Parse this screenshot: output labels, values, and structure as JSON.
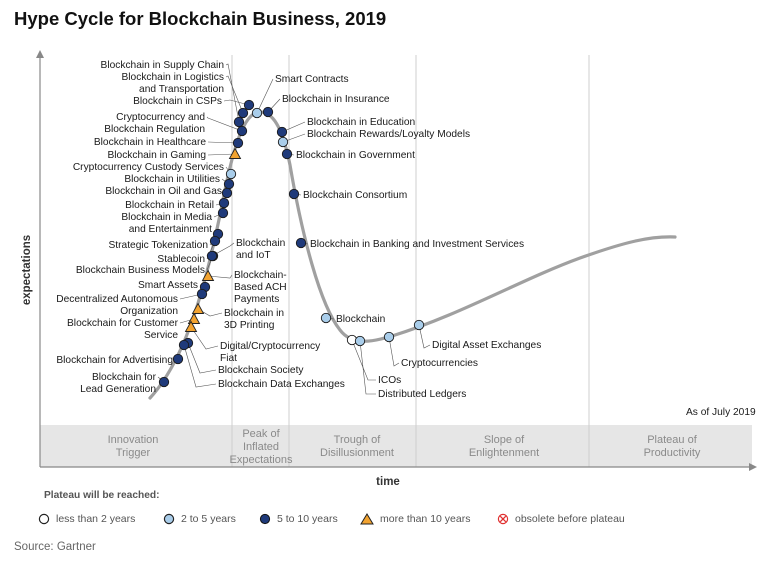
{
  "title": "Hype Cycle for Blockchain Business, 2019",
  "as_of": "As of July 2019",
  "source": "Source: Gartner",
  "legend": {
    "title": "Plateau will be reached:",
    "items": [
      {
        "key": "lt2",
        "label": "less than 2 years",
        "color": "#ffffff"
      },
      {
        "key": "2to5",
        "label": "2 to 5 years",
        "color": "#9ec5e8"
      },
      {
        "key": "5to10",
        "label": "5 to 10 years",
        "color": "#1f3a7a"
      },
      {
        "key": "gt10",
        "label": "more than 10 years",
        "color": "#f0a030"
      },
      {
        "key": "obsolete",
        "label": "obsolete before plateau",
        "color": "#e03030"
      }
    ]
  },
  "colors": {
    "lt2": "#ffffff",
    "2to5": "#a9cdea",
    "5to10": "#1f3a7a",
    "gt10": "#f2a330",
    "curve": "#a0a0a0",
    "band": "#e6e6e6"
  },
  "chart_data": {
    "type": "scatter",
    "title": "Hype Cycle for Blockchain Business, 2019",
    "xlabel": "time",
    "ylabel": "expectations",
    "phases": [
      "Innovation\nTrigger",
      "Peak of\nInflated\nExpectations",
      "Trough of\nDisillusionment",
      "Slope of\nEnlightenment",
      "Plateau of\nProductivity"
    ],
    "points": [
      {
        "name": "Blockchain in Supply Chain",
        "cat": "5to10"
      },
      {
        "name": "Blockchain in Logistics\nand Transportation",
        "cat": "5to10"
      },
      {
        "name": "Blockchain in CSPs",
        "cat": "5to10"
      },
      {
        "name": "Smart Contracts",
        "cat": "2to5"
      },
      {
        "name": "Blockchain in Insurance",
        "cat": "5to10"
      },
      {
        "name": "Cryptocurrency and\nBlockchain Regulation",
        "cat": "5to10"
      },
      {
        "name": "Blockchain in Healthcare",
        "cat": "5to10"
      },
      {
        "name": "Blockchain in Gaming",
        "cat": "gt10"
      },
      {
        "name": "Cryptocurrency Custody Services",
        "cat": "2to5"
      },
      {
        "name": "Blockchain in Utilities",
        "cat": "5to10"
      },
      {
        "name": "Blockchain in Oil and Gas",
        "cat": "5to10"
      },
      {
        "name": "Blockchain in Retail",
        "cat": "5to10"
      },
      {
        "name": "Blockchain in Media\nand Entertainment",
        "cat": "5to10"
      },
      {
        "name": "Strategic Tokenization",
        "cat": "5to10"
      },
      {
        "name": "Stablecoin",
        "cat": "5to10"
      },
      {
        "name": "Blockchain Business Models",
        "cat": "5to10"
      },
      {
        "name": "Blockchain\nand IoT",
        "cat": "5to10"
      },
      {
        "name": "Blockchain-\nBased ACH\nPayments",
        "cat": "gt10"
      },
      {
        "name": "Smart Assets",
        "cat": "5to10"
      },
      {
        "name": "Decentralized Autonomous\nOrganization",
        "cat": "5to10"
      },
      {
        "name": "Blockchain for Customer\nService",
        "cat": "gt10"
      },
      {
        "name": "Blockchain in\n3D Printing",
        "cat": "gt10"
      },
      {
        "name": "Digital/Cryptocurrency\nFiat",
        "cat": "gt10"
      },
      {
        "name": "Blockchain Society",
        "cat": "5to10"
      },
      {
        "name": "Blockchain for Advertising",
        "cat": "5to10"
      },
      {
        "name": "Blockchain Data Exchanges",
        "cat": "5to10"
      },
      {
        "name": "Blockchain for\nLead Generation",
        "cat": "5to10"
      },
      {
        "name": "Blockchain in Education",
        "cat": "5to10"
      },
      {
        "name": "Blockchain Rewards/Loyalty Models",
        "cat": "2to5"
      },
      {
        "name": "Blockchain in Government",
        "cat": "5to10"
      },
      {
        "name": "Blockchain Consortium",
        "cat": "5to10"
      },
      {
        "name": "Blockchain in Banking and Investment Services",
        "cat": "5to10"
      },
      {
        "name": "Blockchain",
        "cat": "2to5"
      },
      {
        "name": "ICOs",
        "cat": "lt2"
      },
      {
        "name": "Distributed Ledgers",
        "cat": "2to5"
      },
      {
        "name": "Cryptocurrencies",
        "cat": "2to5"
      },
      {
        "name": "Digital Asset Exchanges",
        "cat": "2to5"
      }
    ]
  }
}
